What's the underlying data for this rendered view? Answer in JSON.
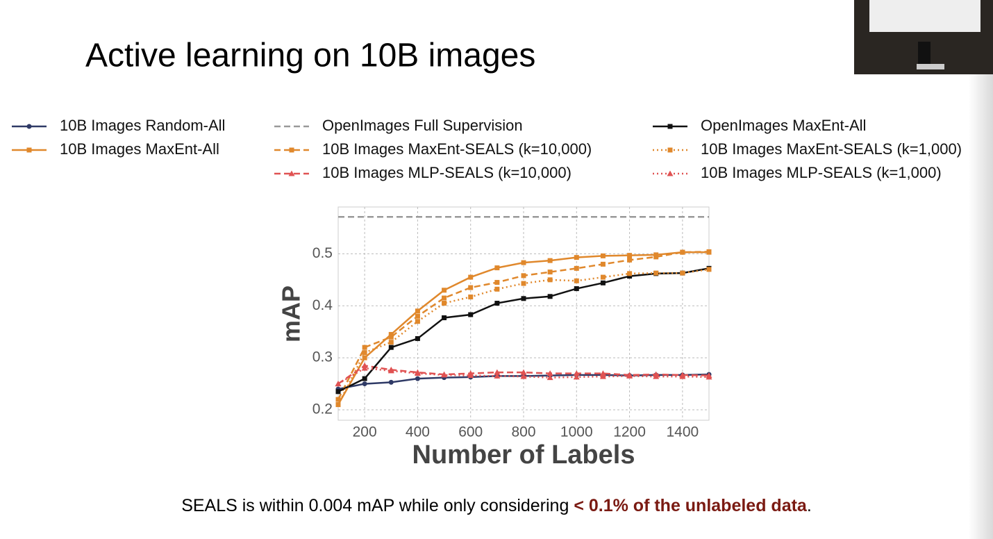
{
  "chart_data": {
    "type": "line",
    "title": "Active learning on 10B images",
    "x_label": "Number of Labels",
    "y_label": "mAP",
    "x": [
      100,
      200,
      300,
      400,
      500,
      600,
      700,
      800,
      900,
      1000,
      1100,
      1200,
      1300,
      1400,
      1500
    ],
    "xlim": [
      100,
      1500
    ],
    "xticks": [
      200,
      400,
      600,
      800,
      1000,
      1200,
      1400
    ],
    "ylim": [
      0.18,
      0.59
    ],
    "yticks": [
      0.2,
      0.3,
      0.4,
      0.5
    ],
    "grid": true,
    "series": [
      {
        "name": "10B Images Random-All",
        "color": "#2f3a66",
        "dash": "solid",
        "marker": "circle",
        "values": [
          0.24,
          0.25,
          0.253,
          0.26,
          0.262,
          0.263,
          0.265,
          0.265,
          0.266,
          0.267,
          0.267,
          0.266,
          0.267,
          0.267,
          0.268
        ]
      },
      {
        "name": "10B Images MaxEnt-All",
        "color": "#e0882c",
        "dash": "solid",
        "marker": "square",
        "values": [
          0.21,
          0.3,
          0.345,
          0.39,
          0.43,
          0.455,
          0.473,
          0.483,
          0.487,
          0.493,
          0.496,
          0.497,
          0.498,
          0.503,
          0.503
        ]
      },
      {
        "name": "OpenImages Full Supervision",
        "color": "#999999",
        "dash": "dashed",
        "marker": null,
        "hline": 0.571
      },
      {
        "name": "10B Images MaxEnt-SEALS (k=10,000)",
        "color": "#e0882c",
        "dash": "dashed",
        "marker": "square",
        "values": [
          0.22,
          0.32,
          0.34,
          0.38,
          0.415,
          0.435,
          0.445,
          0.458,
          0.465,
          0.472,
          0.48,
          0.488,
          0.494,
          0.503,
          0.504
        ]
      },
      {
        "name": "10B Images MLP-SEALS (k=10,000)",
        "color": "#e05252",
        "dash": "dashed",
        "marker": "triangle",
        "values": [
          0.25,
          0.285,
          0.277,
          0.272,
          0.268,
          0.27,
          0.272,
          0.272,
          0.27,
          0.27,
          0.27,
          0.267,
          0.268,
          0.267,
          0.266
        ]
      },
      {
        "name": "OpenImages MaxEnt-All",
        "color": "#111111",
        "dash": "solid",
        "marker": "square",
        "values": [
          0.235,
          0.26,
          0.32,
          0.337,
          0.377,
          0.383,
          0.405,
          0.414,
          0.418,
          0.433,
          0.444,
          0.457,
          0.462,
          0.463,
          0.472
        ]
      },
      {
        "name": "10B Images MaxEnt-SEALS (k=1,000)",
        "color": "#e0882c",
        "dash": "dotted",
        "marker": "square",
        "values": [
          0.21,
          0.31,
          0.33,
          0.37,
          0.405,
          0.417,
          0.432,
          0.443,
          0.45,
          0.448,
          0.455,
          0.462,
          0.463,
          0.463,
          0.47
        ]
      },
      {
        "name": "10B Images MLP-SEALS (k=1,000)",
        "color": "#e05252",
        "dash": "dotted",
        "marker": "triangle",
        "values": [
          0.25,
          0.28,
          0.275,
          0.27,
          0.267,
          0.266,
          0.265,
          0.264,
          0.262,
          0.263,
          0.264,
          0.265,
          0.264,
          0.264,
          0.263
        ]
      }
    ],
    "footnote": {
      "text": "SEALS is within 0.004 mAP while only considering ",
      "highlight": "< 0.1% of the unlabeled data",
      "end": "."
    }
  }
}
